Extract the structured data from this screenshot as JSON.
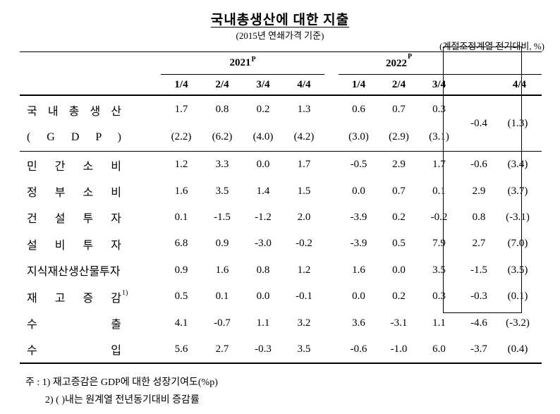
{
  "title": "국내총생산에 대한 지출",
  "subtitle": "(2015년 연쇄가격 기준)",
  "unit_note": "(계절조정계열 전기대비, %)",
  "header": {
    "year1": "2021",
    "year1_sup": "P",
    "year2": "2022",
    "year2_sup": "P",
    "q2021": [
      "1/4",
      "2/4",
      "3/4",
      "4/4"
    ],
    "q2022": [
      "1/4",
      "2/4",
      "3/4"
    ],
    "q_last": "4/4"
  },
  "gdp": {
    "label1": "국 내 총 생 산",
    "label2": "( G D P )",
    "r1": [
      "1.7",
      "0.8",
      "0.2",
      "1.3",
      "0.6",
      "0.7",
      "0.3"
    ],
    "r2": [
      "(2.2)",
      "(6.2)",
      "(4.0)",
      "(4.2)",
      "(3.0)",
      "(2.9)",
      "(3.1)"
    ],
    "last_value": "-0.4",
    "last_paren": "(1.3)"
  },
  "rows": [
    {
      "label": "민 간 소 비",
      "sup": "",
      "values": [
        "1.2",
        "3.3",
        "0.0",
        "1.7",
        "-0.5",
        "2.9",
        "1.7"
      ],
      "last_value": "-0.6",
      "last_paren": "(3.4)"
    },
    {
      "label": "정 부 소 비",
      "sup": "",
      "values": [
        "1.6",
        "3.5",
        "1.4",
        "1.5",
        "0.0",
        "0.7",
        "0.1"
      ],
      "last_value": "2.9",
      "last_paren": "(3.7)"
    },
    {
      "label": "건 설 투 자",
      "sup": "",
      "values": [
        "0.1",
        "-1.5",
        "-1.2",
        "2.0",
        "-3.9",
        "0.2",
        "-0.2"
      ],
      "last_value": "0.8",
      "last_paren": "(-3.1)"
    },
    {
      "label": "설 비 투 자",
      "sup": "",
      "values": [
        "6.8",
        "0.9",
        "-3.0",
        "-0.2",
        "-3.9",
        "0.5",
        "7.9"
      ],
      "last_value": "2.7",
      "last_paren": "(7.0)"
    },
    {
      "label": "지식재산생산물투자",
      "sup": "",
      "values": [
        "0.9",
        "1.6",
        "0.8",
        "1.2",
        "1.6",
        "0.0",
        "3.5"
      ],
      "last_value": "-1.5",
      "last_paren": "(3.5)"
    },
    {
      "label": "재 고 증 감",
      "sup": "1)",
      "values": [
        "0.5",
        "0.1",
        "0.0",
        "-0.1",
        "0.0",
        "0.2",
        "0.3"
      ],
      "last_value": "-0.3",
      "last_paren": "(0.1)"
    },
    {
      "label": "수 출",
      "sup": "",
      "values": [
        "4.1",
        "-0.7",
        "1.1",
        "3.2",
        "3.6",
        "-3.1",
        "1.1"
      ],
      "last_value": "-4.6",
      "last_paren": "(-3.2)"
    },
    {
      "label": "수 입",
      "sup": "",
      "values": [
        "5.6",
        "2.7",
        "-0.3",
        "3.5",
        "-0.6",
        "-1.0",
        "6.0"
      ],
      "last_value": "-3.7",
      "last_paren": "(0.4)"
    }
  ],
  "footnotes": {
    "line1": "주 : 1) 재고증감은 GDP에 대한 성장기여도(%p)",
    "line2": "2) ( )내는 원계열 전년동기대비 증감률"
  }
}
